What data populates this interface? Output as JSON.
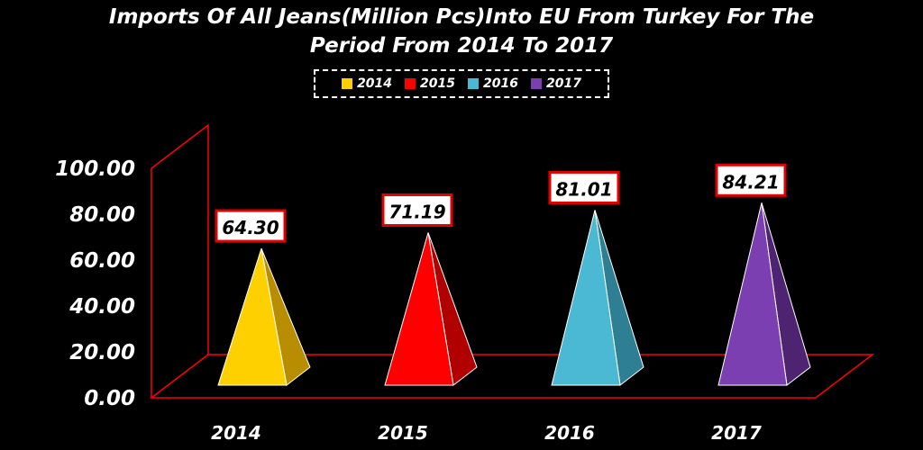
{
  "chart_data": {
    "type": "bar",
    "bar_shape": "pyramid",
    "title_lines": [
      "Imports Of All Jeans(Million Pcs)Into EU From Turkey For The",
      "Period From 2014 To 2017"
    ],
    "categories": [
      "2014",
      "2015",
      "2016",
      "2017"
    ],
    "values": [
      64.3,
      71.19,
      81.01,
      84.21
    ],
    "data_labels": [
      "64.30",
      "71.19",
      "81.01",
      "84.21"
    ],
    "y_ticks": [
      "0.00",
      "20.00",
      "40.00",
      "60.00",
      "80.00",
      "100.00"
    ],
    "ylim": [
      0,
      100
    ],
    "legend": {
      "placement": "top",
      "entries": [
        "2014",
        "2015",
        "2016",
        "2017"
      ]
    },
    "colors": [
      "#FFD000",
      "#FF0000",
      "#4BB8D4",
      "#7B3FB2"
    ],
    "dark_colors": [
      "#B88E00",
      "#B00000",
      "#2E7F93",
      "#4E2472"
    ],
    "axis_color": "#FF0000",
    "grid": false
  }
}
